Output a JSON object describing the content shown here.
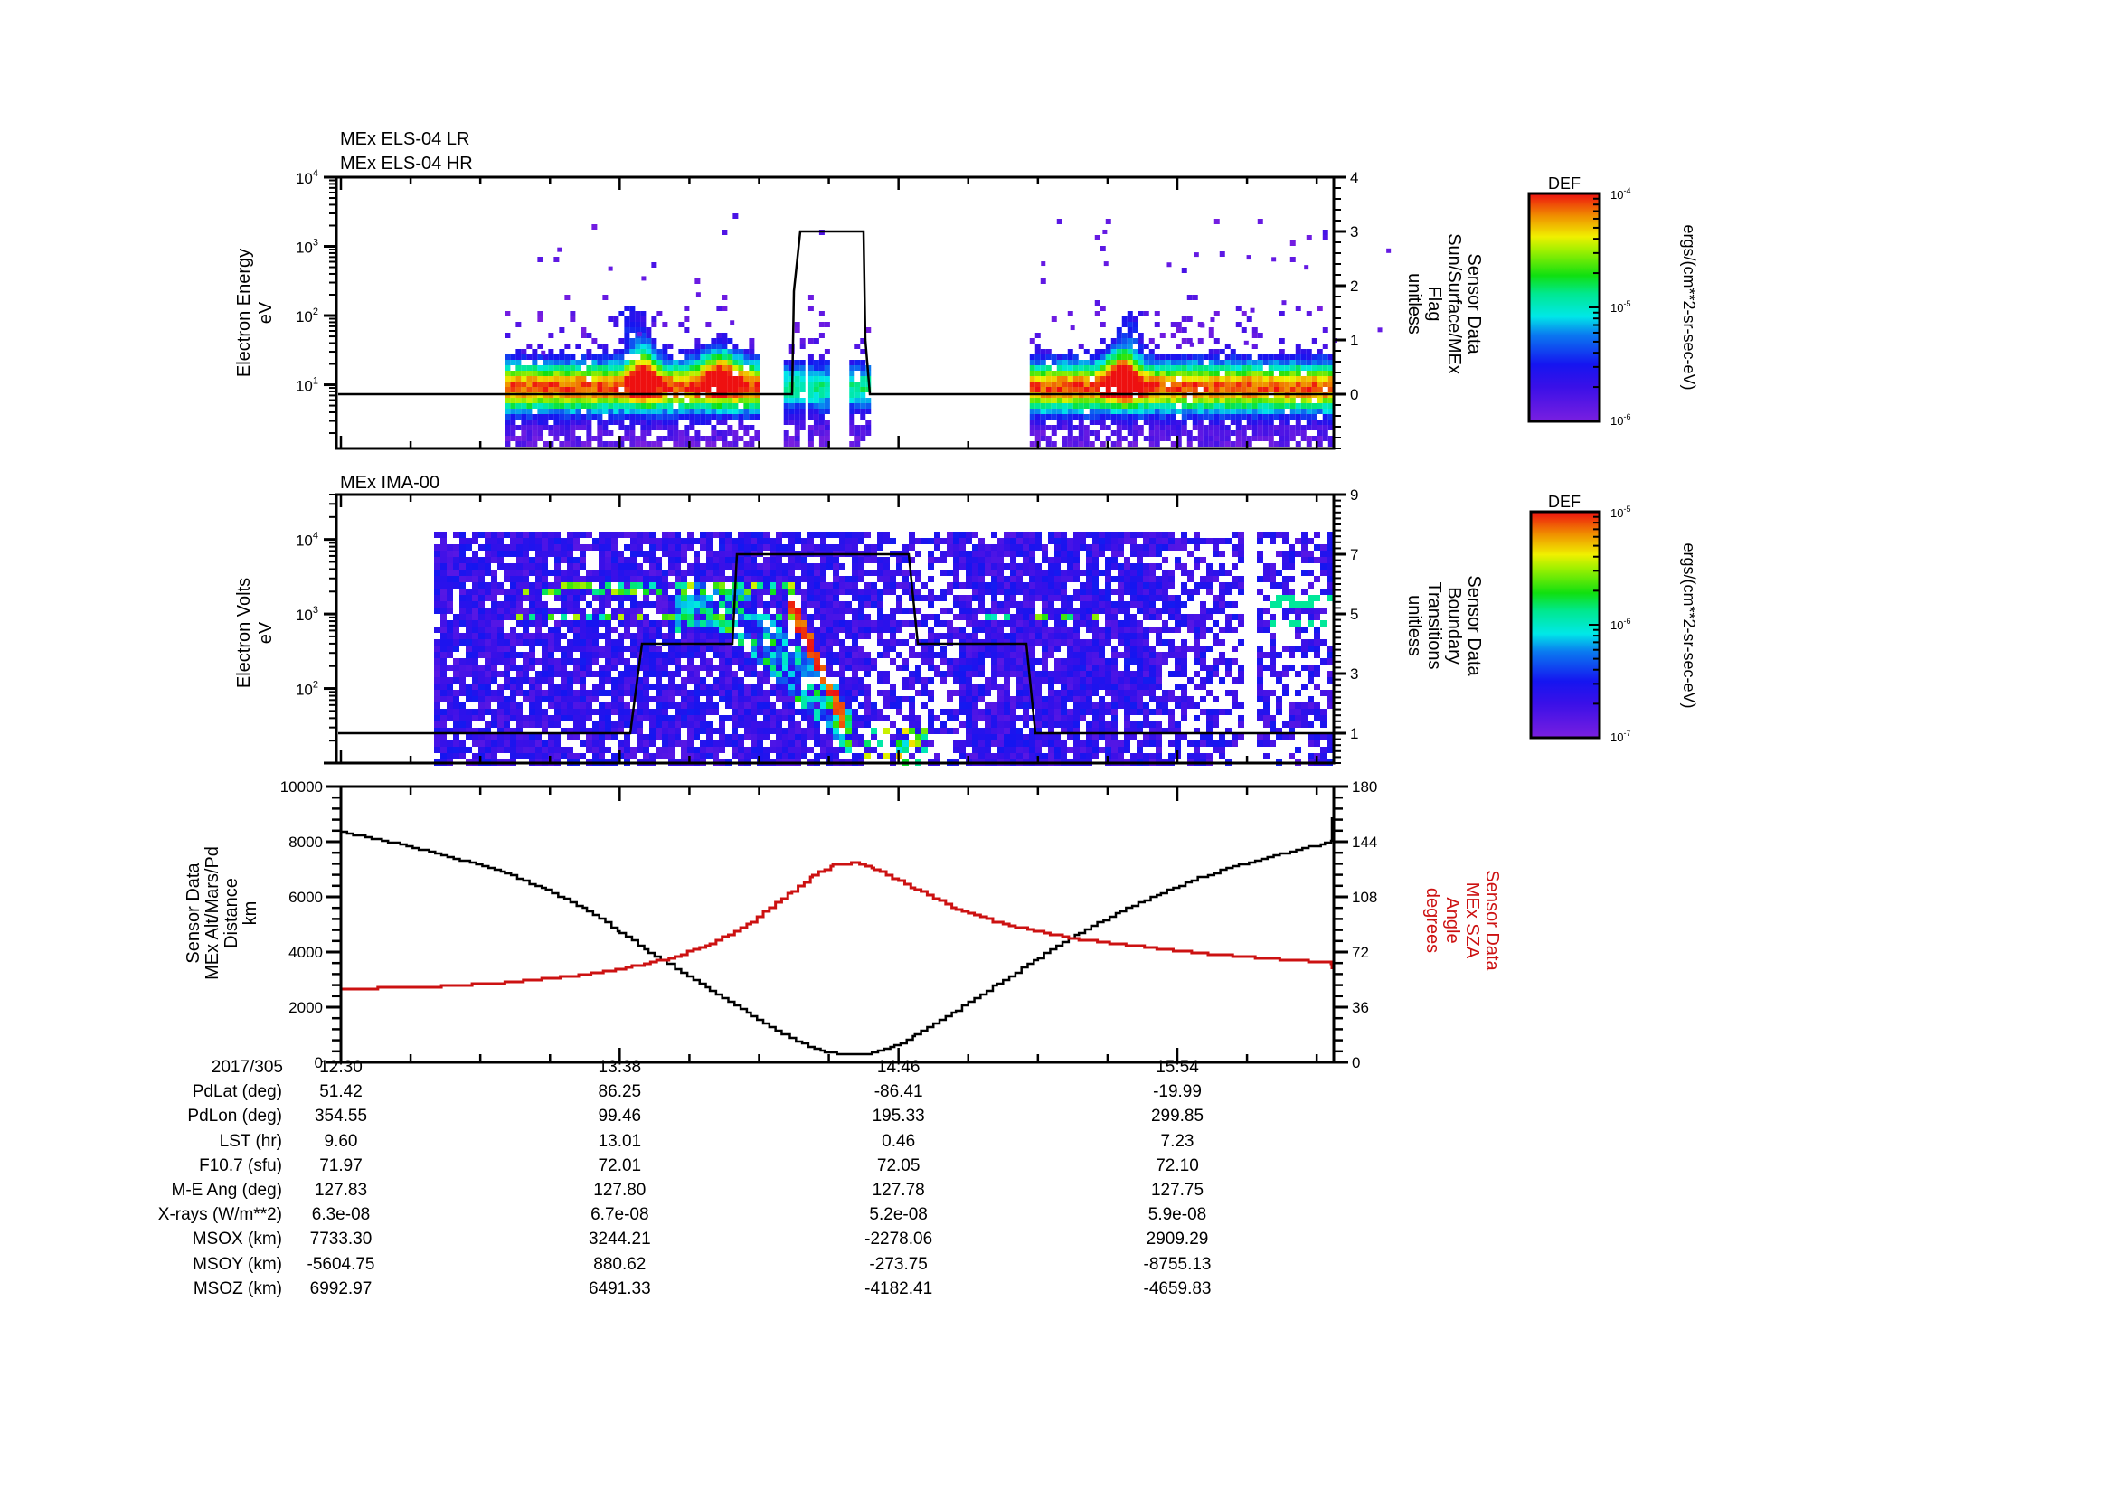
{
  "chart_data": [
    {
      "type": "heatmap",
      "panel_id": "els",
      "title_lines": [
        "MEx ELS-04 LR",
        "MEx ELS-04 HR"
      ],
      "ylabel": "Electron Energy\neV",
      "yscale": "log",
      "ylim": [
        1.2,
        10000
      ],
      "yticks": [
        "10^1",
        "10^2",
        "10^3",
        "10^4"
      ],
      "y2label": "Sensor Data\nSun/Surface/MEx\nFlag\nunitless",
      "y2lim": [
        -1,
        4
      ],
      "y2ticks": [
        0,
        1,
        2,
        3,
        4
      ],
      "line_series": {
        "name": "Sun/Surface/MEx Flag",
        "x_min": [
          0,
          40,
          102,
          106,
          162,
          166,
          197
        ],
        "y": [
          0,
          0,
          0,
          3,
          3,
          0,
          0
        ]
      },
      "heat_regions": [
        {
          "desc": "background electron band 5-20 eV",
          "x_range_min": [
            40,
            102
          ],
          "peak_eV": 10
        },
        {
          "desc": "intense red enhancement",
          "x_range_min": [
            70,
            76
          ],
          "peak_eV": 20
        },
        {
          "desc": "intense red enhancement",
          "x_range_min": [
            86,
            98
          ],
          "peak_eV": 20
        },
        {
          "desc": "data gap / sparse",
          "x_range_min": [
            102,
            168
          ]
        },
        {
          "desc": "intense red enhancement",
          "x_range_min": [
            185,
            195
          ],
          "peak_eV": 15
        },
        {
          "desc": "background electron band",
          "x_range_min": [
            168,
            260
          ],
          "peak_eV": 10
        }
      ],
      "colorbar": {
        "label": "DEF",
        "units": "ergs/(cm**2-sr-sec-eV)",
        "min": "10^-6",
        "mid": "10^-5",
        "max": "10^-4"
      }
    },
    {
      "type": "heatmap",
      "panel_id": "ima",
      "title_lines": [
        "MEx IMA-00"
      ],
      "ylabel": "Electron Volts\neV",
      "yscale": "log",
      "ylim": [
        10,
        40000
      ],
      "yticks": [
        "10^2",
        "10^3",
        "10^4"
      ],
      "y2label": "Sensor Data\nBoundary\nTransitions\nunitless",
      "y2lim": [
        0,
        9
      ],
      "y2ticks": [
        1,
        3,
        5,
        7,
        9
      ],
      "line_series": {
        "name": "Boundary Transitions",
        "x_min": [
          0,
          80,
          85,
          121,
          126,
          162,
          165,
          198,
          202,
          270
        ],
        "y": [
          1,
          1,
          4,
          4,
          7,
          7,
          4,
          4,
          1,
          1
        ]
      },
      "colorbar": {
        "label": "DEF",
        "units": "ergs/(cm**2-sr-sec-eV)",
        "min": "10^-7",
        "mid": "10^-6",
        "max": "10^-5"
      }
    },
    {
      "type": "line",
      "panel_id": "orbit",
      "ylabel": "Sensor Data\nMEx Alt/Mars/Pd\nDistance\nkm",
      "ylim": [
        0,
        10000
      ],
      "yticks": [
        0,
        2000,
        4000,
        6000,
        8000,
        10000
      ],
      "y2label": "Sensor Data\nMEx SZA\nAngle\ndegrees",
      "y2lim": [
        0,
        180
      ],
      "y2ticks": [
        0,
        36,
        72,
        108,
        144,
        180
      ],
      "xlabel_ticks": [
        "12:30",
        "13:38",
        "14:46",
        "15:54"
      ],
      "series": [
        {
          "name": "MEx Alt/Mars/Pd Distance (km)",
          "color": "#000000",
          "axis": "left",
          "x_min": [
            0,
            10,
            20,
            30,
            40,
            50,
            60,
            68,
            75,
            80,
            90,
            100,
            108,
            114,
            118,
            122,
            128,
            135,
            140,
            150,
            160,
            170,
            180,
            190,
            200,
            210,
            220,
            230,
            240,
            250,
            260,
            270
          ],
          "y": [
            8350,
            8050,
            7700,
            7300,
            6850,
            6250,
            5500,
            4700,
            4000,
            3550,
            2600,
            1700,
            1000,
            550,
            350,
            300,
            320,
            600,
            1000,
            1900,
            2850,
            3800,
            4700,
            5500,
            6150,
            6750,
            7200,
            7600,
            7950,
            8300,
            8600,
            8900
          ]
        },
        {
          "name": "MEx SZA Angle (degrees)",
          "color": "#cc1111",
          "axis": "right",
          "x_min": [
            0,
            20,
            40,
            55,
            68,
            80,
            90,
            100,
            110,
            115,
            120,
            125,
            130,
            140,
            150,
            160,
            170,
            180,
            190,
            200,
            210,
            220,
            230,
            240,
            250,
            260,
            270
          ],
          "y": [
            48,
            49,
            52,
            56,
            61,
            68,
            77,
            92,
            112,
            122,
            129,
            130,
            126,
            113,
            100,
            91,
            85,
            80,
            77,
            74,
            71,
            69,
            67,
            65,
            63,
            62,
            61
          ]
        }
      ]
    }
  ],
  "ephemeris_table": {
    "date": "2017/305",
    "times": [
      "12:30",
      "13:38",
      "14:46",
      "15:54"
    ],
    "rows": [
      {
        "label": "PdLat (deg)",
        "values": [
          "51.42",
          "86.25",
          "-86.41",
          "-19.99"
        ]
      },
      {
        "label": "PdLon (deg)",
        "values": [
          "354.55",
          "99.46",
          "195.33",
          "299.85"
        ]
      },
      {
        "label": "LST (hr)",
        "values": [
          "9.60",
          "13.01",
          "0.46",
          "7.23"
        ]
      },
      {
        "label": "F10.7 (sfu)",
        "values": [
          "71.97",
          "72.01",
          "72.05",
          "72.10"
        ]
      },
      {
        "label": "M-E Ang (deg)",
        "values": [
          "127.83",
          "127.80",
          "127.78",
          "127.75"
        ]
      },
      {
        "label": "X-rays (W/m**2)",
        "values": [
          "6.3e-08",
          "6.7e-08",
          "5.2e-08",
          "5.9e-08"
        ]
      },
      {
        "label": "MSOX (km)",
        "values": [
          "7733.30",
          "3244.21",
          "-2278.06",
          "2909.29"
        ]
      },
      {
        "label": "MSOY (km)",
        "values": [
          "-5604.75",
          "880.62",
          "-273.75",
          "-8755.13"
        ]
      },
      {
        "label": "MSOZ (km)",
        "values": [
          "6992.97",
          "6491.33",
          "-4182.41",
          "-4659.83"
        ]
      }
    ]
  },
  "colors": {
    "axis": "#000000",
    "sza_line": "#cc1111",
    "background": "#ffffff"
  }
}
